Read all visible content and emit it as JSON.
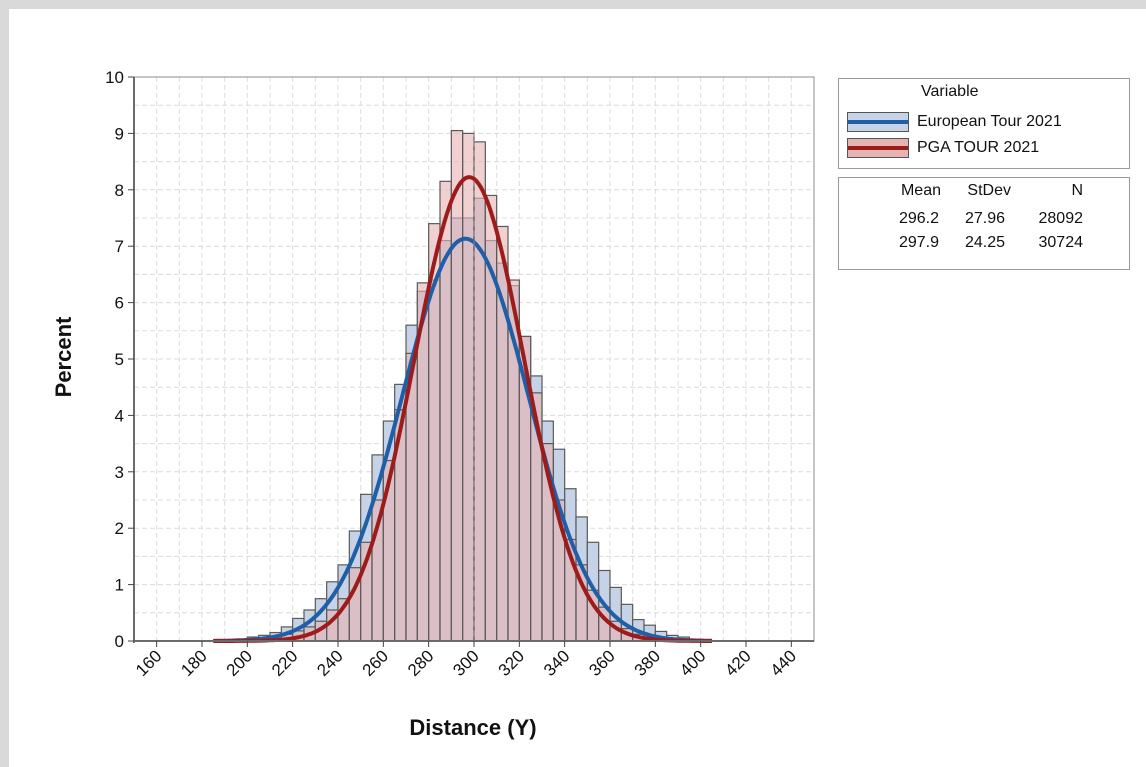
{
  "chart_data": {
    "type": "histogram",
    "title": "",
    "xlabel": "Distance (Y)",
    "ylabel": "Percent",
    "xlim": [
      150,
      450
    ],
    "ylim": [
      0,
      10
    ],
    "xticks": [
      160,
      180,
      200,
      220,
      240,
      260,
      280,
      300,
      320,
      340,
      360,
      380,
      400,
      420,
      440
    ],
    "yticks": [
      0,
      1,
      2,
      3,
      4,
      5,
      6,
      7,
      8,
      9,
      10
    ],
    "grid": true,
    "bin_width": 5,
    "bin_starts": [
      195,
      200,
      205,
      210,
      215,
      220,
      225,
      230,
      235,
      240,
      245,
      250,
      255,
      260,
      265,
      270,
      275,
      280,
      285,
      290,
      295,
      300,
      305,
      310,
      315,
      320,
      325,
      330,
      335,
      340,
      345,
      350,
      355,
      360,
      365,
      370,
      375,
      380,
      385,
      390,
      395
    ],
    "series": [
      {
        "name": "European Tour 2021",
        "color": "#1f5fa8",
        "fill": "#c6d3e6",
        "mean": 296.2,
        "stdev": 27.96,
        "n": 28092,
        "values": [
          0.03,
          0.07,
          0.1,
          0.15,
          0.25,
          0.4,
          0.55,
          0.75,
          1.05,
          1.35,
          1.95,
          2.6,
          3.3,
          3.9,
          4.55,
          5.6,
          6.2,
          6.4,
          7.1,
          7.5,
          7.5,
          7.85,
          7.1,
          6.7,
          6.3,
          5.4,
          4.7,
          3.9,
          3.4,
          2.7,
          2.2,
          1.75,
          1.25,
          0.95,
          0.65,
          0.38,
          0.28,
          0.17,
          0.1,
          0.07,
          0.03
        ]
      },
      {
        "name": "PGA TOUR 2021",
        "color": "#9c1c1c",
        "fill": "#e6b3b3",
        "mean": 297.9,
        "stdev": 24.25,
        "n": 30724,
        "values": [
          0.02,
          0.03,
          0.05,
          0.08,
          0.12,
          0.18,
          0.25,
          0.35,
          0.55,
          0.75,
          1.3,
          1.75,
          2.5,
          3.2,
          4.1,
          5.1,
          6.35,
          7.4,
          8.15,
          9.05,
          9.0,
          8.85,
          7.9,
          7.35,
          6.4,
          5.4,
          4.4,
          3.5,
          2.5,
          1.8,
          1.35,
          0.9,
          0.6,
          0.35,
          0.22,
          0.12,
          0.07,
          0.04,
          0.02,
          0.01,
          0.01
        ]
      }
    ],
    "legend": {
      "title": "Variable",
      "placement": "top-right",
      "stats_headers": [
        "Mean",
        "StDev",
        "N"
      ],
      "stats_rows": [
        [
          "296.2",
          "27.96",
          "28092"
        ],
        [
          "297.9",
          "24.25",
          "30724"
        ]
      ]
    }
  }
}
